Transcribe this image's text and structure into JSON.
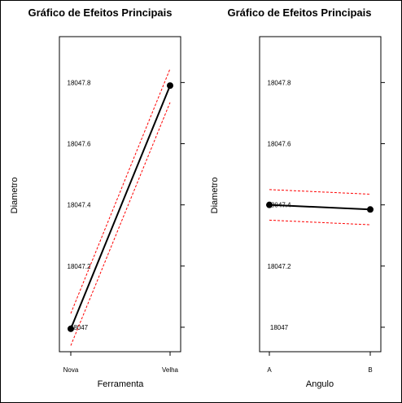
{
  "chart_data": [
    {
      "type": "line",
      "title": "Gráfico de Efeitos Principais",
      "xlabel": "Ferramenta",
      "ylabel": "Diametro",
      "categories": [
        "Nova",
        "Velha"
      ],
      "ylim": [
        18046.92,
        18047.95
      ],
      "yticks": [
        18047,
        18047.2,
        18047.4,
        18047.6,
        18047.8
      ],
      "ytick_labels": [
        "18047",
        "18047.2",
        "18047.4",
        "18047.6",
        "18047.8"
      ],
      "series": [
        {
          "values": [
            18046.995,
            18047.79
          ],
          "color": "#000000",
          "style": "solid",
          "markers": true
        },
        {
          "values": [
            18047.045,
            18047.845
          ],
          "color": "#ff0000",
          "style": "dashed",
          "markers": false
        },
        {
          "values": [
            18046.94,
            18047.735
          ],
          "color": "#ff0000",
          "style": "dashed",
          "markers": false
        }
      ]
    },
    {
      "type": "line",
      "title": "Gráfico de Efeitos Principais",
      "xlabel": "Angulo",
      "ylabel": "Diametro",
      "categories": [
        "A",
        "B"
      ],
      "ylim": [
        18046.92,
        18047.95
      ],
      "yticks": [
        18047,
        18047.2,
        18047.4,
        18047.6,
        18047.8
      ],
      "ytick_labels": [
        "18047",
        "18047.2",
        "18047.4",
        "18047.6",
        "18047.8"
      ],
      "series": [
        {
          "values": [
            18047.4,
            18047.385
          ],
          "color": "#000000",
          "style": "solid",
          "markers": true
        },
        {
          "values": [
            18047.45,
            18047.435
          ],
          "color": "#ff0000",
          "style": "dashed",
          "markers": false
        },
        {
          "values": [
            18047.35,
            18047.335
          ],
          "color": "#ff0000",
          "style": "dashed",
          "markers": false
        }
      ]
    }
  ]
}
